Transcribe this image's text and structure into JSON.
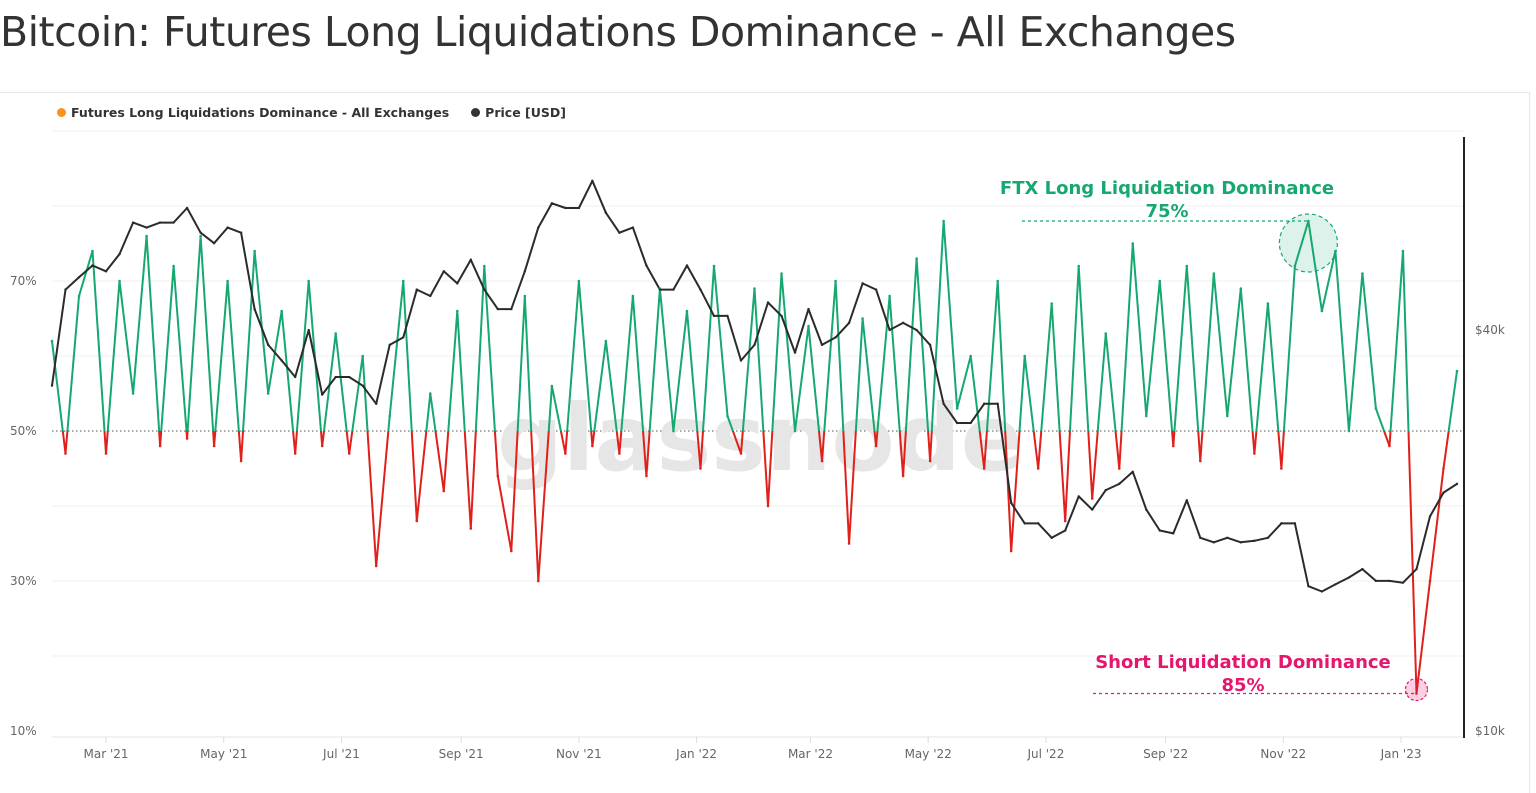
{
  "title": "Bitcoin: Futures Long Liquidations Dominance - All Exchanges",
  "watermark": "glassnode",
  "legend": [
    {
      "label": "Futures Long Liquidations Dominance - All Exchanges",
      "color": "#f7931a"
    },
    {
      "label": "Price [USD]",
      "color": "#333333"
    }
  ],
  "annotations": {
    "long": {
      "title": "FTX Long Liquidation Dominance",
      "value": "75%",
      "color": "#16a870"
    },
    "short": {
      "title": "Short Liquidation Dominance",
      "value": "85%",
      "color": "#e5166c"
    }
  },
  "chart_data": {
    "type": "line",
    "title": "Bitcoin: Futures Long Liquidations Dominance - All Exchanges",
    "y_left": {
      "ticks": [
        "10%",
        "30%",
        "50%",
        "70%"
      ],
      "tick_values": [
        10,
        30,
        50,
        70
      ],
      "range": [
        10,
        90
      ]
    },
    "y_right": {
      "ticks": [
        "$10k",
        "$40k"
      ],
      "tick_values": [
        10000,
        40000
      ],
      "scale": "log",
      "range": [
        10000,
        78000
      ]
    },
    "x_ticks": [
      "Mar '21",
      "May '21",
      "Jul '21",
      "Sep '21",
      "Nov '21",
      "Jan '22",
      "Mar '22",
      "May '22",
      "Jul '22",
      "Sep '22",
      "Nov '22",
      "Jan '23"
    ],
    "x_tick_dates": [
      "2021-03-01",
      "2021-05-01",
      "2021-07-01",
      "2021-09-01",
      "2021-11-01",
      "2022-01-01",
      "2022-03-01",
      "2022-05-01",
      "2022-07-01",
      "2022-09-01",
      "2022-11-01",
      "2023-01-01"
    ],
    "reference_line": 50,
    "colors": {
      "above": "#16a870",
      "below": "#e0201b",
      "price": "#2b2b2b"
    },
    "x": [
      "2021-02-01",
      "2021-02-08",
      "2021-02-15",
      "2021-02-22",
      "2021-03-01",
      "2021-03-08",
      "2021-03-15",
      "2021-03-22",
      "2021-03-29",
      "2021-04-05",
      "2021-04-12",
      "2021-04-19",
      "2021-04-26",
      "2021-05-03",
      "2021-05-10",
      "2021-05-17",
      "2021-05-24",
      "2021-05-31",
      "2021-06-07",
      "2021-06-14",
      "2021-06-21",
      "2021-06-28",
      "2021-07-05",
      "2021-07-12",
      "2021-07-19",
      "2021-07-26",
      "2021-08-02",
      "2021-08-09",
      "2021-08-16",
      "2021-08-23",
      "2021-08-30",
      "2021-09-06",
      "2021-09-13",
      "2021-09-20",
      "2021-09-27",
      "2021-10-04",
      "2021-10-11",
      "2021-10-18",
      "2021-10-25",
      "2021-11-01",
      "2021-11-08",
      "2021-11-15",
      "2021-11-22",
      "2021-11-29",
      "2021-12-06",
      "2021-12-13",
      "2021-12-20",
      "2021-12-27",
      "2022-01-03",
      "2022-01-10",
      "2022-01-17",
      "2022-01-24",
      "2022-01-31",
      "2022-02-07",
      "2022-02-14",
      "2022-02-21",
      "2022-02-28",
      "2022-03-07",
      "2022-03-14",
      "2022-03-21",
      "2022-03-28",
      "2022-04-04",
      "2022-04-11",
      "2022-04-18",
      "2022-04-25",
      "2022-05-02",
      "2022-05-09",
      "2022-05-16",
      "2022-05-23",
      "2022-05-30",
      "2022-06-06",
      "2022-06-13",
      "2022-06-20",
      "2022-06-27",
      "2022-07-04",
      "2022-07-11",
      "2022-07-18",
      "2022-07-25",
      "2022-08-01",
      "2022-08-08",
      "2022-08-15",
      "2022-08-22",
      "2022-08-29",
      "2022-09-05",
      "2022-09-12",
      "2022-09-19",
      "2022-09-26",
      "2022-10-03",
      "2022-10-10",
      "2022-10-17",
      "2022-10-24",
      "2022-10-31",
      "2022-11-07",
      "2022-11-14",
      "2022-11-21",
      "2022-11-28",
      "2022-12-05",
      "2022-12-12",
      "2022-12-19",
      "2022-12-26",
      "2023-01-02",
      "2023-01-09",
      "2023-01-16",
      "2023-01-23",
      "2023-01-30"
    ],
    "series": [
      {
        "name": "Futures Long Liquidations Dominance - All Exchanges",
        "unit": "%",
        "values": [
          62,
          47,
          68,
          74,
          47,
          70,
          55,
          76,
          48,
          72,
          49,
          76,
          48,
          70,
          46,
          74,
          55,
          66,
          47,
          70,
          48,
          63,
          47,
          60,
          32,
          52,
          70,
          38,
          55,
          42,
          66,
          37,
          72,
          44,
          34,
          68,
          30,
          56,
          47,
          70,
          48,
          62,
          47,
          68,
          44,
          69,
          50,
          66,
          45,
          72,
          52,
          47,
          69,
          40,
          71,
          50,
          64,
          46,
          70,
          35,
          65,
          48,
          68,
          44,
          73,
          46,
          78,
          53,
          60,
          45,
          70,
          34,
          60,
          45,
          67,
          38,
          72,
          41,
          63,
          45,
          75,
          52,
          70,
          48,
          72,
          46,
          71,
          52,
          69,
          47,
          67,
          45,
          72,
          78,
          66,
          74,
          50,
          71,
          53,
          48,
          74,
          15,
          30,
          45,
          58
        ]
      },
      {
        "name": "Price [USD]",
        "unit": "USD",
        "values": [
          33000,
          46000,
          48000,
          50000,
          49000,
          52000,
          58000,
          57000,
          58000,
          58000,
          61000,
          56000,
          54000,
          57000,
          56000,
          43000,
          38000,
          36000,
          34000,
          40000,
          32000,
          34000,
          34000,
          33000,
          31000,
          38000,
          39000,
          46000,
          45000,
          49000,
          47000,
          51000,
          46000,
          43000,
          43000,
          49000,
          57000,
          62000,
          61000,
          61000,
          67000,
          60000,
          56000,
          57000,
          50000,
          46000,
          46000,
          50000,
          46000,
          42000,
          42000,
          36000,
          38000,
          44000,
          42000,
          37000,
          43000,
          38000,
          39000,
          41000,
          47000,
          46000,
          40000,
          41000,
          40000,
          38000,
          31000,
          29000,
          29000,
          31000,
          31000,
          22000,
          20500,
          20500,
          19500,
          20000,
          22500,
          21500,
          23000,
          23500,
          24500,
          21500,
          20000,
          19800,
          22200,
          19500,
          19200,
          19500,
          19200,
          19300,
          19500,
          20500,
          20500,
          16500,
          16200,
          16600,
          17000,
          17500,
          16800,
          16800,
          16700,
          17500,
          21000,
          22800,
          23500
        ]
      }
    ]
  }
}
